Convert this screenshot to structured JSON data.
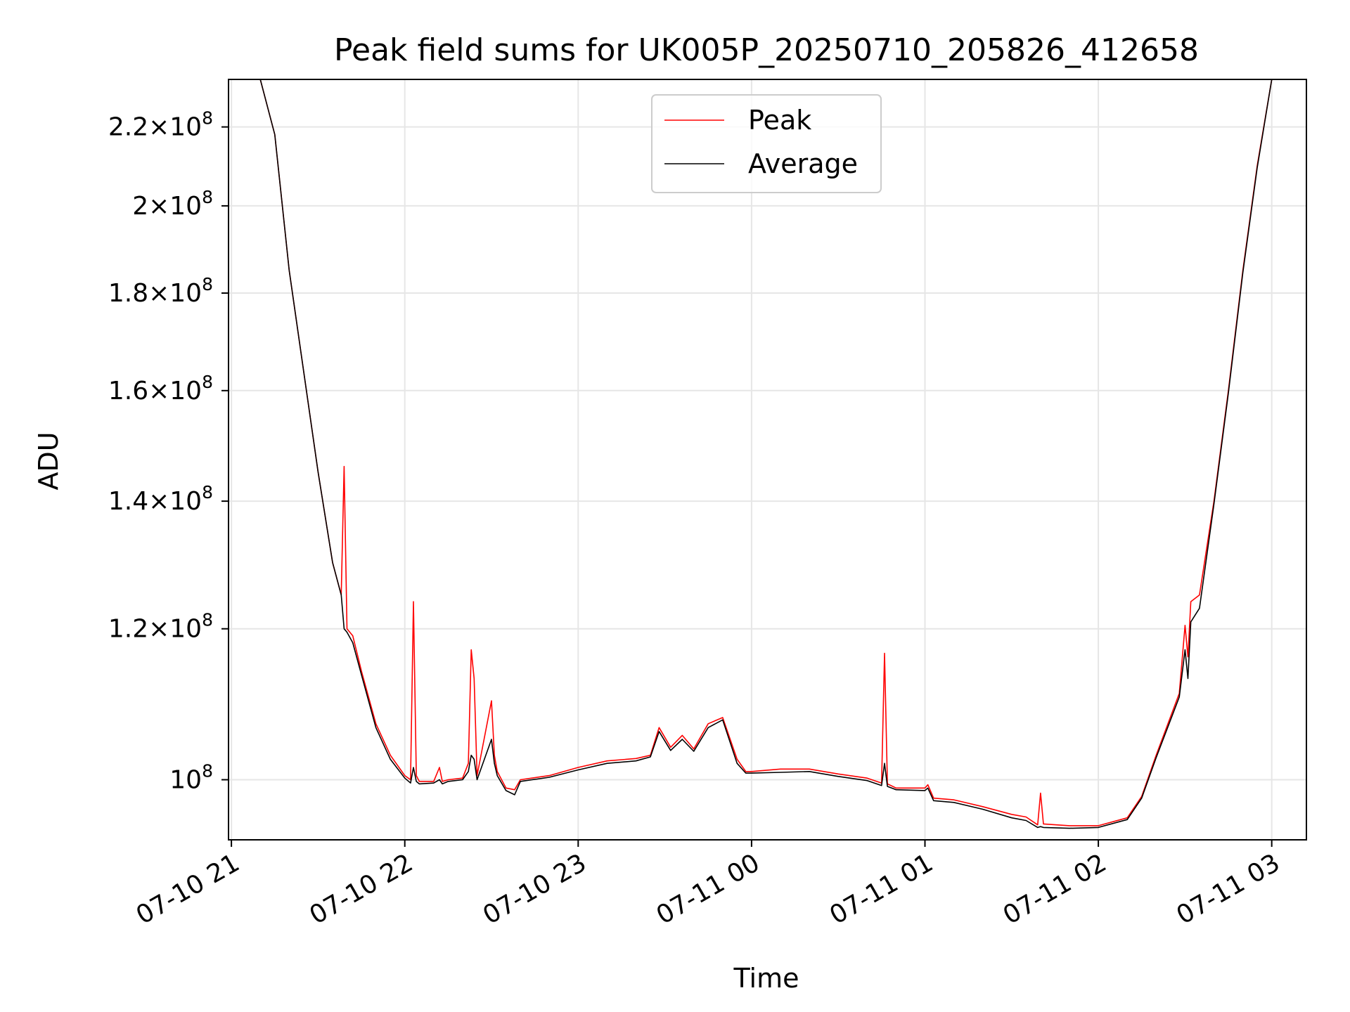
{
  "chart_data": {
    "type": "line",
    "title": "Peak field sums for UK005P_20250710_205826_412658",
    "xlabel": "Time",
    "ylabel": "ADU",
    "y_scale": "log",
    "xlim": [
      "2025-07-10 20:59",
      "2025-07-11 03:12"
    ],
    "ylim": [
      93000000,
      233000000
    ],
    "grid": true,
    "legend_position": "top-center",
    "x_ticks": [
      {
        "time": "2025-07-10 21:00",
        "label": "07-10 21"
      },
      {
        "time": "2025-07-10 22:00",
        "label": "07-10 22"
      },
      {
        "time": "2025-07-10 23:00",
        "label": "07-10 23"
      },
      {
        "time": "2025-07-11 00:00",
        "label": "07-11 00"
      },
      {
        "time": "2025-07-11 01:00",
        "label": "07-11 01"
      },
      {
        "time": "2025-07-11 02:00",
        "label": "07-11 02"
      },
      {
        "time": "2025-07-11 03:00",
        "label": "07-11 03"
      }
    ],
    "y_ticks": [
      {
        "value": 100000000,
        "mantissa": "",
        "exponent": "8"
      },
      {
        "value": 120000000,
        "mantissa": "1.2",
        "exponent": "8"
      },
      {
        "value": 140000000,
        "mantissa": "1.4",
        "exponent": "8"
      },
      {
        "value": 160000000,
        "mantissa": "1.6",
        "exponent": "8"
      },
      {
        "value": 180000000,
        "mantissa": "1.8",
        "exponent": "8"
      },
      {
        "value": 200000000,
        "mantissa": "2",
        "exponent": "8"
      },
      {
        "value": 220000000,
        "mantissa": "2.2",
        "exponent": "8"
      }
    ],
    "series": [
      {
        "name": "Peak",
        "color": "#ff0000",
        "x": [
          "2025-07-10 21:00",
          "2025-07-10 21:10",
          "2025-07-10 21:15",
          "2025-07-10 21:20",
          "2025-07-10 21:30",
          "2025-07-10 21:35",
          "2025-07-10 21:38",
          "2025-07-10 21:39",
          "2025-07-10 21:40",
          "2025-07-10 21:42",
          "2025-07-10 21:45",
          "2025-07-10 21:50",
          "2025-07-10 21:55",
          "2025-07-10 22:00",
          "2025-07-10 22:02",
          "2025-07-10 22:03",
          "2025-07-10 22:04",
          "2025-07-10 22:05",
          "2025-07-10 22:10",
          "2025-07-10 22:12",
          "2025-07-10 22:13",
          "2025-07-10 22:15",
          "2025-07-10 22:20",
          "2025-07-10 22:22",
          "2025-07-10 22:23",
          "2025-07-10 22:24",
          "2025-07-10 22:25",
          "2025-07-10 22:30",
          "2025-07-10 22:31",
          "2025-07-10 22:32",
          "2025-07-10 22:35",
          "2025-07-10 22:38",
          "2025-07-10 22:40",
          "2025-07-10 22:50",
          "2025-07-10 23:00",
          "2025-07-10 23:10",
          "2025-07-10 23:20",
          "2025-07-10 23:25",
          "2025-07-10 23:28",
          "2025-07-10 23:32",
          "2025-07-10 23:36",
          "2025-07-10 23:40",
          "2025-07-10 23:45",
          "2025-07-10 23:50",
          "2025-07-10 23:55",
          "2025-07-10 23:58",
          "2025-07-11 00:00",
          "2025-07-11 00:10",
          "2025-07-11 00:20",
          "2025-07-11 00:30",
          "2025-07-11 00:40",
          "2025-07-11 00:45",
          "2025-07-11 00:46",
          "2025-07-11 00:47",
          "2025-07-11 00:50",
          "2025-07-11 01:00",
          "2025-07-11 01:01",
          "2025-07-11 01:03",
          "2025-07-11 01:10",
          "2025-07-11 01:20",
          "2025-07-11 01:30",
          "2025-07-11 01:35",
          "2025-07-11 01:39",
          "2025-07-11 01:40",
          "2025-07-11 01:41",
          "2025-07-11 01:50",
          "2025-07-11 02:00",
          "2025-07-11 02:10",
          "2025-07-11 02:15",
          "2025-07-11 02:20",
          "2025-07-11 02:28",
          "2025-07-11 02:30",
          "2025-07-11 02:31",
          "2025-07-11 02:32",
          "2025-07-11 02:35",
          "2025-07-11 02:40",
          "2025-07-11 02:45",
          "2025-07-11 02:50",
          "2025-07-11 02:55",
          "2025-07-11 03:00"
        ],
        "values": [
          233000000,
          233000000,
          218000000,
          185000000,
          145000000,
          130000000,
          125000000,
          146000000,
          120000000,
          119000000,
          114000000,
          107000000,
          103000000,
          100500000,
          100000000,
          124000000,
          100500000,
          99800000,
          99800000,
          101500000,
          99800000,
          100000000,
          100200000,
          102000000,
          117000000,
          113000000,
          100500000,
          110000000,
          103000000,
          101000000,
          99000000,
          98800000,
          100000000,
          100500000,
          101500000,
          102300000,
          102600000,
          103000000,
          106500000,
          104000000,
          105500000,
          103800000,
          107000000,
          107800000,
          102500000,
          101000000,
          101000000,
          101300000,
          101300000,
          100700000,
          100200000,
          99600000,
          116500000,
          99500000,
          99000000,
          99000000,
          99400000,
          97800000,
          97600000,
          96800000,
          95900000,
          95600000,
          94700000,
          98400000,
          94800000,
          94600000,
          94600000,
          95500000,
          98000000,
          103000000,
          111000000,
          120500000,
          116000000,
          124000000,
          125000000,
          140000000,
          160000000,
          185000000,
          210000000,
          233000000
        ]
      },
      {
        "name": "Average",
        "color": "#000000",
        "x": [
          "2025-07-10 21:00",
          "2025-07-10 21:10",
          "2025-07-10 21:15",
          "2025-07-10 21:20",
          "2025-07-10 21:30",
          "2025-07-10 21:35",
          "2025-07-10 21:38",
          "2025-07-10 21:39",
          "2025-07-10 21:40",
          "2025-07-10 21:42",
          "2025-07-10 21:45",
          "2025-07-10 21:50",
          "2025-07-10 21:55",
          "2025-07-10 22:00",
          "2025-07-10 22:02",
          "2025-07-10 22:03",
          "2025-07-10 22:04",
          "2025-07-10 22:05",
          "2025-07-10 22:10",
          "2025-07-10 22:12",
          "2025-07-10 22:13",
          "2025-07-10 22:15",
          "2025-07-10 22:20",
          "2025-07-10 22:22",
          "2025-07-10 22:23",
          "2025-07-10 22:24",
          "2025-07-10 22:25",
          "2025-07-10 22:30",
          "2025-07-10 22:31",
          "2025-07-10 22:32",
          "2025-07-10 22:35",
          "2025-07-10 22:38",
          "2025-07-10 22:40",
          "2025-07-10 22:50",
          "2025-07-10 23:00",
          "2025-07-10 23:10",
          "2025-07-10 23:20",
          "2025-07-10 23:25",
          "2025-07-10 23:28",
          "2025-07-10 23:32",
          "2025-07-10 23:36",
          "2025-07-10 23:40",
          "2025-07-10 23:45",
          "2025-07-10 23:50",
          "2025-07-10 23:55",
          "2025-07-10 23:58",
          "2025-07-11 00:00",
          "2025-07-11 00:10",
          "2025-07-11 00:20",
          "2025-07-11 00:30",
          "2025-07-11 00:40",
          "2025-07-11 00:45",
          "2025-07-11 00:46",
          "2025-07-11 00:47",
          "2025-07-11 00:50",
          "2025-07-11 01:00",
          "2025-07-11 01:01",
          "2025-07-11 01:03",
          "2025-07-11 01:10",
          "2025-07-11 01:20",
          "2025-07-11 01:30",
          "2025-07-11 01:35",
          "2025-07-11 01:39",
          "2025-07-11 01:40",
          "2025-07-11 01:41",
          "2025-07-11 01:50",
          "2025-07-11 02:00",
          "2025-07-11 02:10",
          "2025-07-11 02:15",
          "2025-07-11 02:20",
          "2025-07-11 02:28",
          "2025-07-11 02:30",
          "2025-07-11 02:31",
          "2025-07-11 02:32",
          "2025-07-11 02:35",
          "2025-07-11 02:40",
          "2025-07-11 02:45",
          "2025-07-11 02:50",
          "2025-07-11 02:55",
          "2025-07-11 03:00"
        ],
        "values": [
          233000000,
          233000000,
          218000000,
          185000000,
          145000000,
          130000000,
          125000000,
          120000000,
          119500000,
          118000000,
          113500000,
          106500000,
          102500000,
          100200000,
          99600000,
          101500000,
          99800000,
          99500000,
          99600000,
          100000000,
          99500000,
          99800000,
          100000000,
          101000000,
          103000000,
          102500000,
          100000000,
          105000000,
          102000000,
          100500000,
          98700000,
          98200000,
          99800000,
          100300000,
          101200000,
          102000000,
          102300000,
          102800000,
          106000000,
          103600000,
          105000000,
          103500000,
          106500000,
          107500000,
          102000000,
          100800000,
          100800000,
          100900000,
          101000000,
          100400000,
          99900000,
          99300000,
          102000000,
          99200000,
          98800000,
          98700000,
          99000000,
          97500000,
          97300000,
          96500000,
          95500000,
          95200000,
          94400000,
          94500000,
          94400000,
          94300000,
          94400000,
          95300000,
          97800000,
          102700000,
          110500000,
          117000000,
          113000000,
          121000000,
          123000000,
          139500000,
          159500000,
          184500000,
          209500000,
          233000000
        ]
      }
    ]
  }
}
